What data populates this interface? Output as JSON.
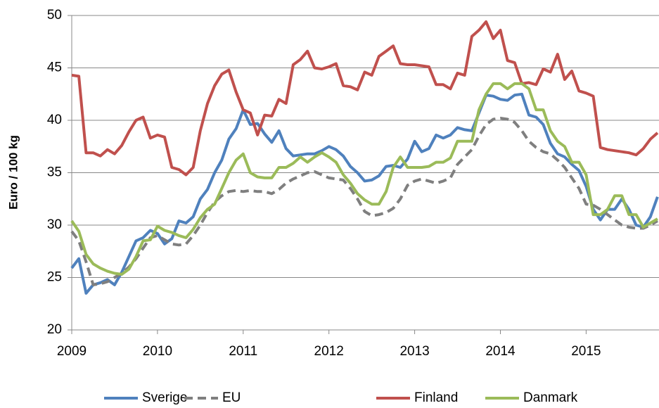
{
  "chart_data": {
    "type": "line",
    "y_label": "Euro / 100 kg",
    "x": [
      2009.0,
      2009.083,
      2009.167,
      2009.25,
      2009.333,
      2009.417,
      2009.5,
      2009.583,
      2009.667,
      2009.75,
      2009.833,
      2009.917,
      2010.0,
      2010.083,
      2010.167,
      2010.25,
      2010.333,
      2010.417,
      2010.5,
      2010.583,
      2010.667,
      2010.75,
      2010.833,
      2010.917,
      2011.0,
      2011.083,
      2011.167,
      2011.25,
      2011.333,
      2011.417,
      2011.5,
      2011.583,
      2011.667,
      2011.75,
      2011.833,
      2011.917,
      2012.0,
      2012.083,
      2012.167,
      2012.25,
      2012.333,
      2012.417,
      2012.5,
      2012.583,
      2012.667,
      2012.75,
      2012.833,
      2012.917,
      2013.0,
      2013.083,
      2013.167,
      2013.25,
      2013.333,
      2013.417,
      2013.5,
      2013.583,
      2013.667,
      2013.75,
      2013.833,
      2013.917,
      2014.0,
      2014.083,
      2014.167,
      2014.25,
      2014.333,
      2014.417,
      2014.5,
      2014.583,
      2014.667,
      2014.75,
      2014.833,
      2014.917,
      2015.0,
      2015.083,
      2015.167,
      2015.25,
      2015.333,
      2015.417,
      2015.5,
      2015.583,
      2015.667,
      2015.75,
      2015.833
    ],
    "series": [
      {
        "name": "Sverige",
        "color": "#4f81bd",
        "dashed": false,
        "values": [
          25.9,
          26.8,
          23.5,
          24.3,
          24.5,
          24.8,
          24.3,
          25.5,
          27.0,
          28.5,
          28.8,
          29.5,
          29.2,
          28.2,
          28.7,
          30.4,
          30.2,
          30.8,
          32.5,
          33.4,
          35.0,
          36.2,
          38.2,
          39.2,
          41.0,
          39.6,
          39.7,
          38.7,
          37.9,
          39.0,
          37.3,
          36.6,
          36.7,
          36.8,
          36.8,
          37.1,
          37.5,
          37.2,
          36.6,
          35.6,
          35.0,
          34.2,
          34.3,
          34.7,
          35.6,
          35.7,
          35.5,
          36.3,
          38.0,
          37.0,
          37.3,
          38.6,
          38.3,
          38.6,
          39.3,
          39.1,
          39.0,
          40.7,
          42.4,
          42.3,
          42.0,
          41.9,
          42.4,
          42.5,
          40.5,
          40.3,
          39.6,
          37.8,
          36.8,
          36.5,
          35.8,
          35.2,
          33.7,
          31.5,
          30.5,
          31.5,
          31.5,
          32.5,
          31.5,
          30.0,
          29.8,
          30.8,
          32.7
        ]
      },
      {
        "name": "EU",
        "color": "#7f7f7f",
        "dashed": true,
        "values": [
          29.4,
          28.5,
          26.5,
          24.3,
          24.4,
          24.6,
          25.0,
          25.4,
          26.0,
          26.8,
          27.8,
          28.8,
          29.0,
          28.6,
          28.2,
          28.1,
          28.2,
          29.0,
          30.0,
          31.2,
          32.2,
          32.8,
          33.2,
          33.3,
          33.2,
          33.3,
          33.2,
          33.2,
          33.0,
          33.4,
          34.0,
          34.4,
          34.7,
          35.0,
          35.1,
          34.8,
          34.5,
          34.4,
          34.3,
          33.5,
          32.5,
          31.3,
          30.9,
          31.0,
          31.2,
          31.6,
          32.5,
          33.8,
          34.2,
          34.4,
          34.2,
          34.0,
          34.2,
          34.5,
          35.8,
          36.5,
          37.2,
          38.5,
          39.6,
          40.1,
          40.2,
          40.1,
          39.8,
          39.0,
          38.0,
          37.4,
          37.0,
          36.8,
          36.2,
          35.5,
          34.5,
          33.5,
          32.0,
          31.9,
          31.5,
          31.0,
          30.5,
          30.0,
          29.8,
          29.7,
          29.7,
          30.0,
          30.4
        ]
      },
      {
        "name": "Finland",
        "color": "#c0504d",
        "dashed": false,
        "values": [
          44.3,
          44.2,
          36.9,
          36.9,
          36.6,
          37.2,
          36.8,
          37.6,
          38.9,
          40.0,
          40.3,
          38.3,
          38.6,
          38.4,
          35.5,
          35.3,
          34.8,
          35.5,
          39.0,
          41.6,
          43.3,
          44.4,
          44.8,
          42.7,
          41.0,
          40.7,
          38.6,
          40.5,
          40.4,
          42.0,
          41.6,
          45.3,
          45.8,
          46.6,
          45.0,
          44.9,
          45.1,
          45.4,
          43.3,
          43.2,
          42.9,
          44.6,
          44.3,
          46.1,
          46.6,
          47.1,
          45.4,
          45.3,
          45.3,
          45.2,
          45.1,
          43.4,
          43.4,
          43.0,
          44.5,
          44.3,
          48.0,
          48.6,
          49.4,
          47.8,
          48.6,
          45.7,
          45.5,
          43.5,
          43.6,
          43.4,
          44.9,
          44.6,
          46.3,
          43.9,
          44.7,
          42.8,
          42.6,
          42.3,
          37.4,
          37.2,
          37.1,
          37.0,
          36.9,
          36.7,
          37.3,
          38.2,
          38.8
        ]
      },
      {
        "name": "Danmark",
        "color": "#9bbb59",
        "dashed": false,
        "values": [
          30.4,
          29.4,
          27.2,
          26.3,
          25.9,
          25.6,
          25.4,
          25.3,
          25.8,
          27.0,
          28.5,
          28.6,
          29.9,
          29.5,
          29.3,
          29.0,
          28.8,
          29.6,
          30.7,
          31.5,
          32.0,
          33.5,
          35.0,
          36.2,
          36.8,
          35.0,
          34.6,
          34.5,
          34.5,
          35.5,
          35.5,
          35.9,
          36.5,
          36.0,
          36.5,
          36.9,
          36.5,
          36.0,
          34.8,
          34.0,
          33.0,
          32.4,
          32.0,
          32.0,
          33.2,
          35.5,
          36.5,
          35.5,
          35.5,
          35.5,
          35.6,
          36.0,
          36.0,
          36.4,
          38.0,
          38.0,
          38.0,
          41.0,
          42.5,
          43.5,
          43.5,
          43.0,
          43.5,
          43.5,
          43.0,
          41.0,
          41.0,
          39.0,
          38.0,
          37.5,
          36.0,
          36.0,
          34.8,
          31.0,
          31.0,
          31.5,
          32.8,
          32.8,
          31.0,
          31.0,
          29.8,
          30.2,
          30.6
        ]
      }
    ],
    "xlim": [
      2009,
      2015.85
    ],
    "xticks": [
      2009,
      2010,
      2011,
      2012,
      2013,
      2014,
      2015
    ],
    "ylim": [
      20,
      50
    ],
    "yticks": [
      20,
      25,
      30,
      35,
      40,
      45,
      50
    ],
    "grid": true,
    "legend": "bottom"
  }
}
